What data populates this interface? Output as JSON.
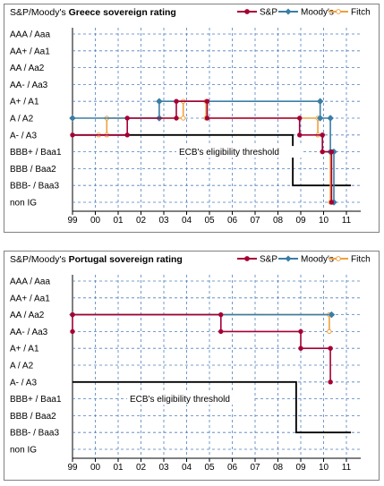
{
  "chart_data": [
    {
      "type": "line",
      "title_prefix": "S&P/Moody's",
      "title": "Greece sovereign rating",
      "y_categories": [
        "AAA / Aaa",
        "AA+ / Aa1",
        "AA / Aa2",
        "AA- / Aa3",
        "A+ / A1",
        "A / A2",
        "A- / A3",
        "BBB+ / Baa1",
        "BBB / Baa2",
        "BBB- / Baa3",
        "non IG"
      ],
      "x_tick_labels": [
        "99",
        "00",
        "01",
        "02",
        "03",
        "04",
        "05",
        "06",
        "07",
        "08",
        "09",
        "10",
        "11"
      ],
      "x_range": [
        1999,
        2011.2
      ],
      "grid": true,
      "legend_position": "top-right",
      "annotation": "ECB's eligibility threshold",
      "series": [
        {
          "name": "S&P",
          "color": "#a50034",
          "marker": "circle",
          "points": [
            [
              1999.0,
              "A- / A3"
            ],
            [
              2001.4,
              "A- / A3"
            ],
            [
              2001.4,
              "A / A2"
            ],
            [
              2003.55,
              "A / A2"
            ],
            [
              2003.55,
              "A+ / A1"
            ],
            [
              2004.9,
              "A+ / A1"
            ],
            [
              2004.9,
              "A / A2"
            ],
            [
              2008.95,
              "A / A2"
            ],
            [
              2008.95,
              "A- / A3"
            ],
            [
              2009.95,
              "A- / A3"
            ],
            [
              2009.95,
              "BBB+ / Baa1"
            ],
            [
              2010.35,
              "BBB+ / Baa1"
            ],
            [
              2010.35,
              "non IG"
            ]
          ]
        },
        {
          "name": "Moody's",
          "color": "#3a7ea6",
          "marker": "diamond",
          "points": [
            [
              1999.0,
              "A / A2"
            ],
            [
              2002.8,
              "A / A2"
            ],
            [
              2002.8,
              "A+ / A1"
            ],
            [
              2009.85,
              "A+ / A1"
            ],
            [
              2009.85,
              "A / A2"
            ],
            [
              2010.3,
              "A / A2"
            ],
            [
              2010.3,
              "BBB+ / Baa1"
            ],
            [
              2010.45,
              "BBB+ / Baa1"
            ],
            [
              2010.45,
              "non IG"
            ]
          ]
        },
        {
          "name": "Fitch",
          "color": "#f0a03c",
          "marker": "circle",
          "points": [
            [
              2000.15,
              "A- / A3"
            ],
            [
              2000.5,
              "A- / A3"
            ],
            [
              2000.5,
              "A / A2"
            ],
            [
              2003.85,
              "A / A2"
            ],
            [
              2003.85,
              "A+ / A1"
            ],
            [
              2004.85,
              "A+ / A1"
            ],
            [
              2004.85,
              "A / A2"
            ],
            [
              2009.75,
              "A / A2"
            ],
            [
              2009.75,
              "A- / A3"
            ],
            [
              2009.95,
              "A- / A3"
            ],
            [
              2009.95,
              "BBB+ / Baa1"
            ],
            [
              2010.3,
              "BBB+ / Baa1"
            ],
            [
              2010.3,
              "non IG"
            ]
          ]
        },
        {
          "name": "",
          "color": "#000000",
          "marker": "none",
          "points": [
            [
              1999.0,
              "A- / A3"
            ],
            [
              2008.65,
              "A- / A3"
            ],
            [
              2008.65,
              "BBB- / Baa3"
            ],
            [
              2011.2,
              "BBB- / Baa3"
            ]
          ]
        }
      ]
    },
    {
      "type": "line",
      "title_prefix": "S&P/Moody's",
      "title": "Portugal sovereign rating",
      "y_categories": [
        "AAA / Aaa",
        "AA+ / Aa1",
        "AA / Aa2",
        "AA- / Aa3",
        "A+ / A1",
        "A / A2",
        "A- / A3",
        "BBB+ / Baa1",
        "BBB / Baa2",
        "BBB- / Baa3",
        "non IG"
      ],
      "x_tick_labels": [
        "99",
        "00",
        "01",
        "02",
        "03",
        "04",
        "05",
        "06",
        "07",
        "08",
        "09",
        "10",
        "11"
      ],
      "x_range": [
        1999,
        2011.2
      ],
      "grid": true,
      "legend_position": "top-right",
      "annotation": "ECB's eligibility threshold",
      "series": [
        {
          "name": "S&P",
          "color": "#a50034",
          "marker": "circle",
          "points": [
            [
              1999.0,
              "AA- / Aa3"
            ],
            [
              1999.0,
              "AA / Aa2"
            ],
            [
              2005.5,
              "AA / Aa2"
            ],
            [
              2005.5,
              "AA- / Aa3"
            ],
            [
              2009.0,
              "AA- / Aa3"
            ],
            [
              2009.0,
              "A+ / A1"
            ],
            [
              2010.3,
              "A+ / A1"
            ],
            [
              2010.3,
              "A- / A3"
            ]
          ]
        },
        {
          "name": "Moody's",
          "color": "#3a7ea6",
          "marker": "diamond",
          "points": [
            [
              1999.0,
              "AA / Aa2"
            ],
            [
              2010.35,
              "AA / Aa2"
            ]
          ]
        },
        {
          "name": "Fitch",
          "color": "#f0a03c",
          "marker": "circle",
          "points": [
            [
              1999.0,
              "AA / Aa2"
            ],
            [
              2010.25,
              "AA / Aa2"
            ],
            [
              2010.25,
              "AA- / Aa3"
            ]
          ]
        },
        {
          "name": "",
          "color": "#000000",
          "marker": "none",
          "points": [
            [
              1999.0,
              "A- / A3"
            ],
            [
              2008.8,
              "A- / A3"
            ],
            [
              2008.8,
              "BBB- / Baa3"
            ],
            [
              2011.2,
              "BBB- / Baa3"
            ]
          ]
        }
      ]
    }
  ]
}
